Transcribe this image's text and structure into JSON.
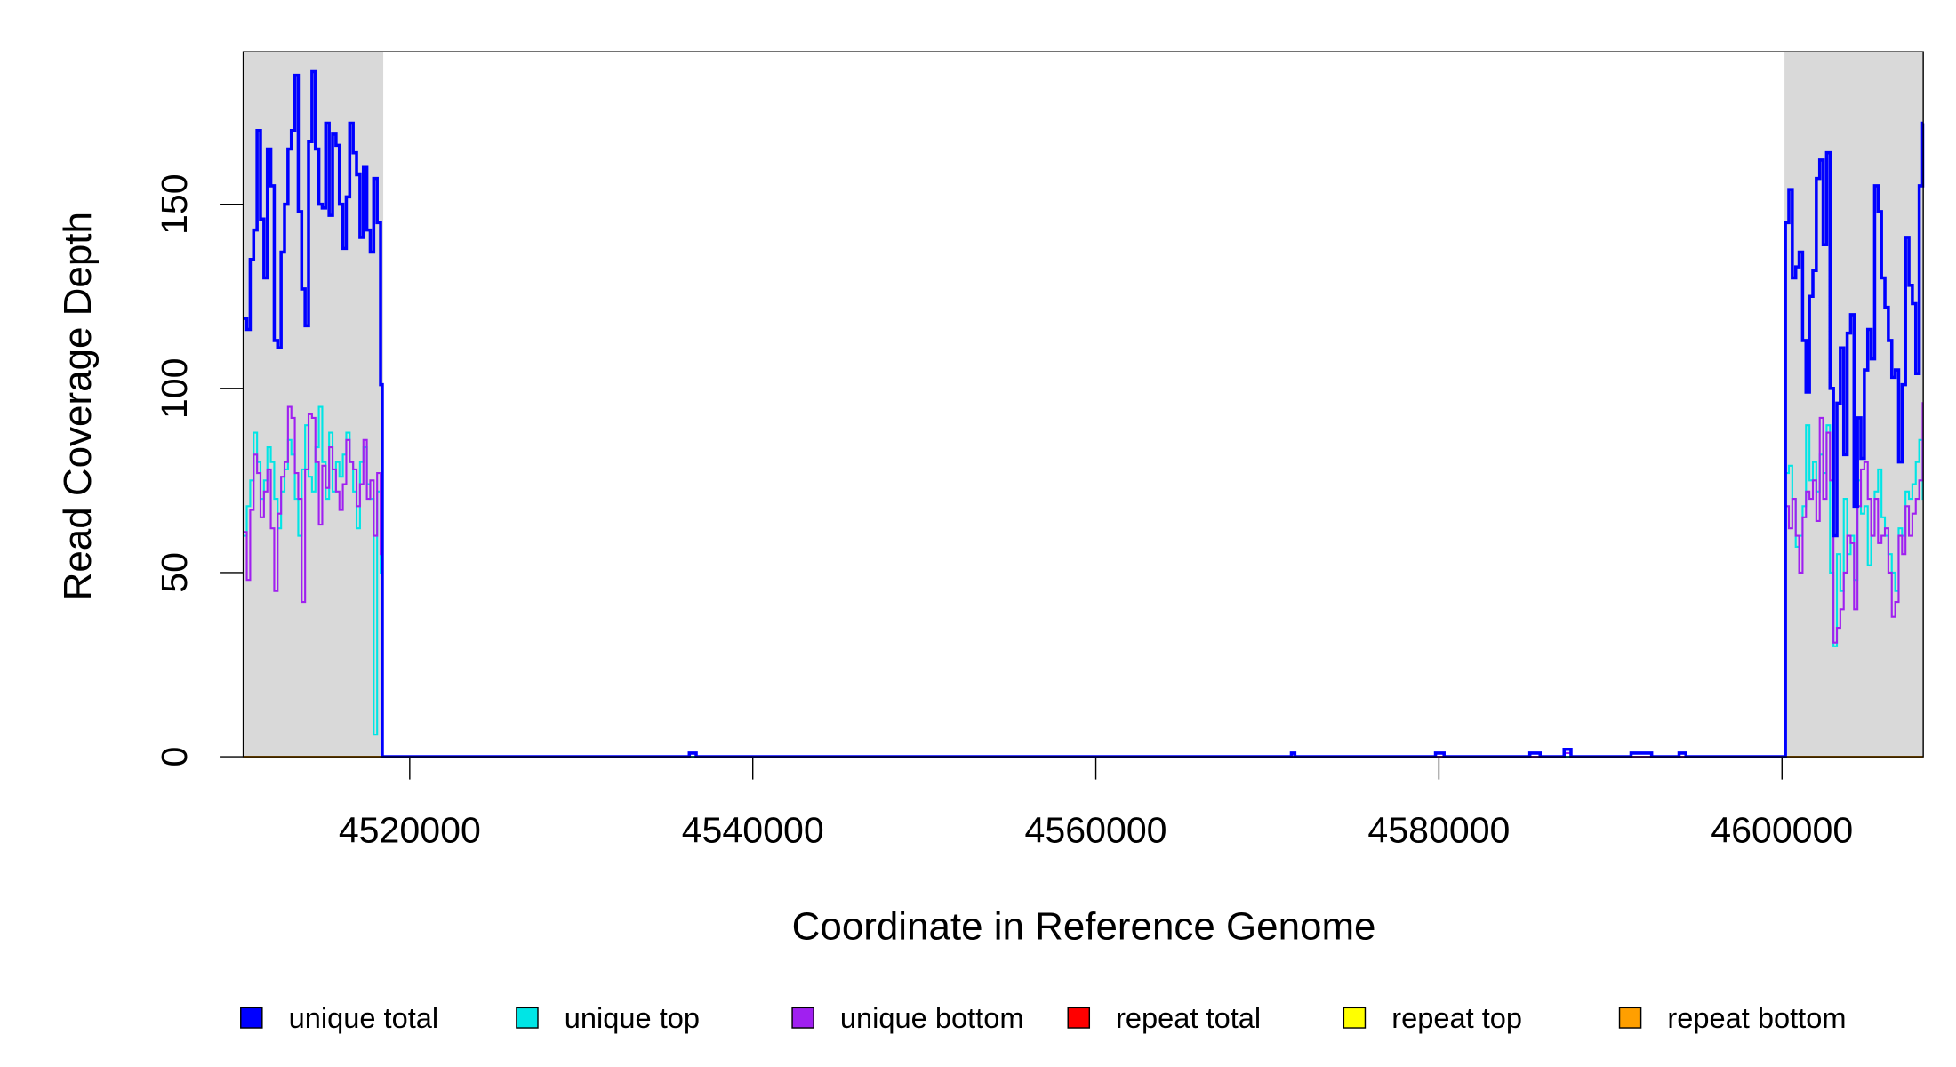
{
  "chart_data": {
    "type": "line",
    "step": "post",
    "xlabel": "Coordinate in Reference Genome",
    "ylabel": "Read Coverage Depth",
    "xlim": [
      4510294,
      4608235
    ],
    "ylim": [
      0,
      191.4
    ],
    "xticks": [
      4520000,
      4540000,
      4560000,
      4580000,
      4600000
    ],
    "yticks": [
      0,
      50,
      100,
      150
    ],
    "highlight_ranges": [
      [
        4510294,
        4518456
      ],
      [
        4600147,
        4608235
      ]
    ],
    "highlight_color": "#d9d9d9",
    "legend": "bottom",
    "x": [
      4510300,
      4510500,
      4510700,
      4510900,
      4511100,
      4511300,
      4511500,
      4511700,
      4511900,
      4512100,
      4512300,
      4512500,
      4512700,
      4512900,
      4513100,
      4513300,
      4513500,
      4513700,
      4513900,
      4514100,
      4514300,
      4514500,
      4514700,
      4514900,
      4515100,
      4515300,
      4515500,
      4515700,
      4515900,
      4516100,
      4516300,
      4516500,
      4516700,
      4516900,
      4517100,
      4517300,
      4517500,
      4517700,
      4517900,
      4518100,
      4518300,
      4518400,
      4536300,
      4536700,
      4571400,
      4571600,
      4579800,
      4580300,
      4585300,
      4585900,
      4587300,
      4587700,
      4591200,
      4592400,
      4594000,
      4594400,
      4600200,
      4600400,
      4600600,
      4600800,
      4601000,
      4601200,
      4601400,
      4601600,
      4601800,
      4602000,
      4602200,
      4602400,
      4602600,
      4602800,
      4603000,
      4603200,
      4603400,
      4603600,
      4603800,
      4604000,
      4604200,
      4604400,
      4604600,
      4604800,
      4605000,
      4605200,
      4605400,
      4605600,
      4605800,
      4606000,
      4606200,
      4606400,
      4606600,
      4606800,
      4607000,
      4607200,
      4607400,
      4607600,
      4607800,
      4608000,
      4608200
    ],
    "series": [
      {
        "name": "repeat total",
        "color": "#ff0000",
        "width": 1.5,
        "values": [
          0,
          0,
          0,
          0,
          0,
          0,
          0,
          0,
          0,
          0,
          0,
          0,
          0,
          0,
          0,
          0,
          0,
          0,
          0,
          0,
          0,
          0,
          0,
          0,
          0,
          0,
          0,
          0,
          0,
          0,
          0,
          0,
          0,
          0,
          0,
          0,
          0,
          0,
          0,
          0,
          0,
          0,
          0,
          0,
          0,
          0,
          0,
          0,
          0,
          0,
          0,
          0,
          0,
          0,
          0,
          0,
          0,
          0,
          0,
          0,
          0,
          0,
          0,
          0,
          0,
          0,
          0,
          0,
          0,
          0,
          0,
          0,
          0,
          0,
          0,
          0,
          0,
          0,
          0,
          0,
          0,
          0,
          0,
          0,
          0,
          0,
          0,
          0,
          0,
          0,
          0,
          0,
          0,
          0,
          0,
          0,
          0
        ]
      },
      {
        "name": "repeat top",
        "color": "#ffff00",
        "width": 1.5,
        "values": [
          0,
          0,
          0,
          0,
          0,
          0,
          0,
          0,
          0,
          0,
          0,
          0,
          0,
          0,
          0,
          0,
          0,
          0,
          0,
          0,
          0,
          0,
          0,
          0,
          0,
          0,
          0,
          0,
          0,
          0,
          0,
          0,
          0,
          0,
          0,
          0,
          0,
          0,
          0,
          0,
          0,
          0,
          0,
          0,
          0,
          0,
          0,
          0,
          0,
          0,
          0,
          0,
          0,
          0,
          0,
          0,
          0,
          0,
          0,
          0,
          0,
          0,
          0,
          0,
          0,
          0,
          0,
          0,
          0,
          0,
          0,
          0,
          0,
          0,
          0,
          0,
          0,
          0,
          0,
          0,
          0,
          0,
          0,
          0,
          0,
          0,
          0,
          0,
          0,
          0,
          0,
          0,
          0,
          0,
          0,
          0,
          0
        ]
      },
      {
        "name": "repeat bottom",
        "color": "#ff9f00",
        "width": 1.5,
        "values": [
          0,
          0,
          0,
          0,
          0,
          0,
          0,
          0,
          0,
          0,
          0,
          0,
          0,
          0,
          0,
          0,
          0,
          0,
          0,
          0,
          0,
          0,
          0,
          0,
          0,
          0,
          0,
          0,
          0,
          0,
          0,
          0,
          0,
          0,
          0,
          0,
          0,
          0,
          0,
          0,
          0,
          0,
          0,
          0,
          0,
          0,
          0,
          0,
          0,
          0,
          0,
          0,
          0,
          0,
          0,
          0,
          0,
          0,
          0,
          0,
          0,
          0,
          0,
          0,
          0,
          0,
          0,
          0,
          0,
          0,
          0,
          0,
          0,
          0,
          0,
          0,
          0,
          0,
          0,
          0,
          0,
          0,
          0,
          0,
          0,
          0,
          0,
          0,
          0,
          0,
          0,
          0,
          0,
          0,
          0,
          0,
          0
        ]
      },
      {
        "name": "unique top",
        "color": "#00e5e5",
        "width": 1.5,
        "values": [
          60,
          68,
          75,
          88,
          80,
          70,
          75,
          84,
          80,
          70,
          62,
          72,
          78,
          86,
          82,
          70,
          60,
          78,
          90,
          76,
          72,
          84,
          95,
          80,
          70,
          88,
          72,
          80,
          76,
          82,
          88,
          80,
          72,
          62,
          80,
          84,
          74,
          70,
          6,
          72,
          50,
          0,
          0,
          0,
          0,
          0,
          0,
          0,
          0,
          0,
          0,
          0,
          0,
          0,
          0,
          0,
          77,
          79,
          70,
          57,
          60,
          68,
          90,
          75,
          80,
          72,
          82,
          77,
          90,
          50,
          30,
          55,
          45,
          70,
          55,
          60,
          48,
          75,
          66,
          68,
          52,
          60,
          72,
          78,
          65,
          60,
          55,
          50,
          45,
          62,
          60,
          72,
          70,
          74,
          80,
          86,
          70
        ]
      },
      {
        "name": "unique bottom",
        "color": "#a020f0",
        "width": 1.5,
        "values": [
          61,
          48,
          67,
          82,
          77,
          65,
          72,
          78,
          62,
          45,
          66,
          76,
          80,
          95,
          92,
          77,
          70,
          42,
          78,
          93,
          92,
          80,
          63,
          79,
          73,
          84,
          78,
          72,
          67,
          74,
          86,
          80,
          78,
          68,
          74,
          86,
          70,
          75,
          60,
          77,
          55,
          0,
          1,
          0,
          0,
          0,
          0,
          0,
          0,
          0,
          1,
          0,
          0,
          0,
          0,
          0,
          68,
          62,
          70,
          60,
          50,
          65,
          72,
          70,
          75,
          64,
          92,
          70,
          88,
          75,
          31,
          35,
          40,
          50,
          60,
          58,
          40,
          68,
          78,
          80,
          70,
          60,
          70,
          58,
          60,
          62,
          50,
          38,
          42,
          60,
          55,
          68,
          60,
          66,
          70,
          75,
          96
        ]
      },
      {
        "name": "unique total",
        "color": "#0000ff",
        "width": 2.5,
        "values": [
          119,
          116,
          135,
          143,
          170,
          146,
          130,
          165,
          155,
          113,
          111,
          137,
          150,
          165,
          170,
          185,
          148,
          127,
          117,
          167,
          186,
          165,
          150,
          149,
          172,
          147,
          169,
          166,
          150,
          138,
          152,
          172,
          164,
          158,
          141,
          160,
          143,
          137,
          157,
          145,
          101,
          0,
          1,
          0,
          1,
          0,
          1,
          0,
          1,
          0,
          2,
          0,
          1,
          0,
          1,
          0,
          145,
          154,
          130,
          133,
          137,
          113,
          99,
          125,
          132,
          157,
          162,
          139,
          164,
          100,
          60,
          96,
          111,
          82,
          115,
          120,
          68,
          92,
          81,
          105,
          116,
          108,
          155,
          148,
          130,
          122,
          113,
          103,
          105,
          80,
          101,
          141,
          128,
          123,
          104,
          155,
          172
        ]
      }
    ],
    "legend_order": [
      5,
      3,
      4,
      0,
      1,
      2
    ]
  }
}
